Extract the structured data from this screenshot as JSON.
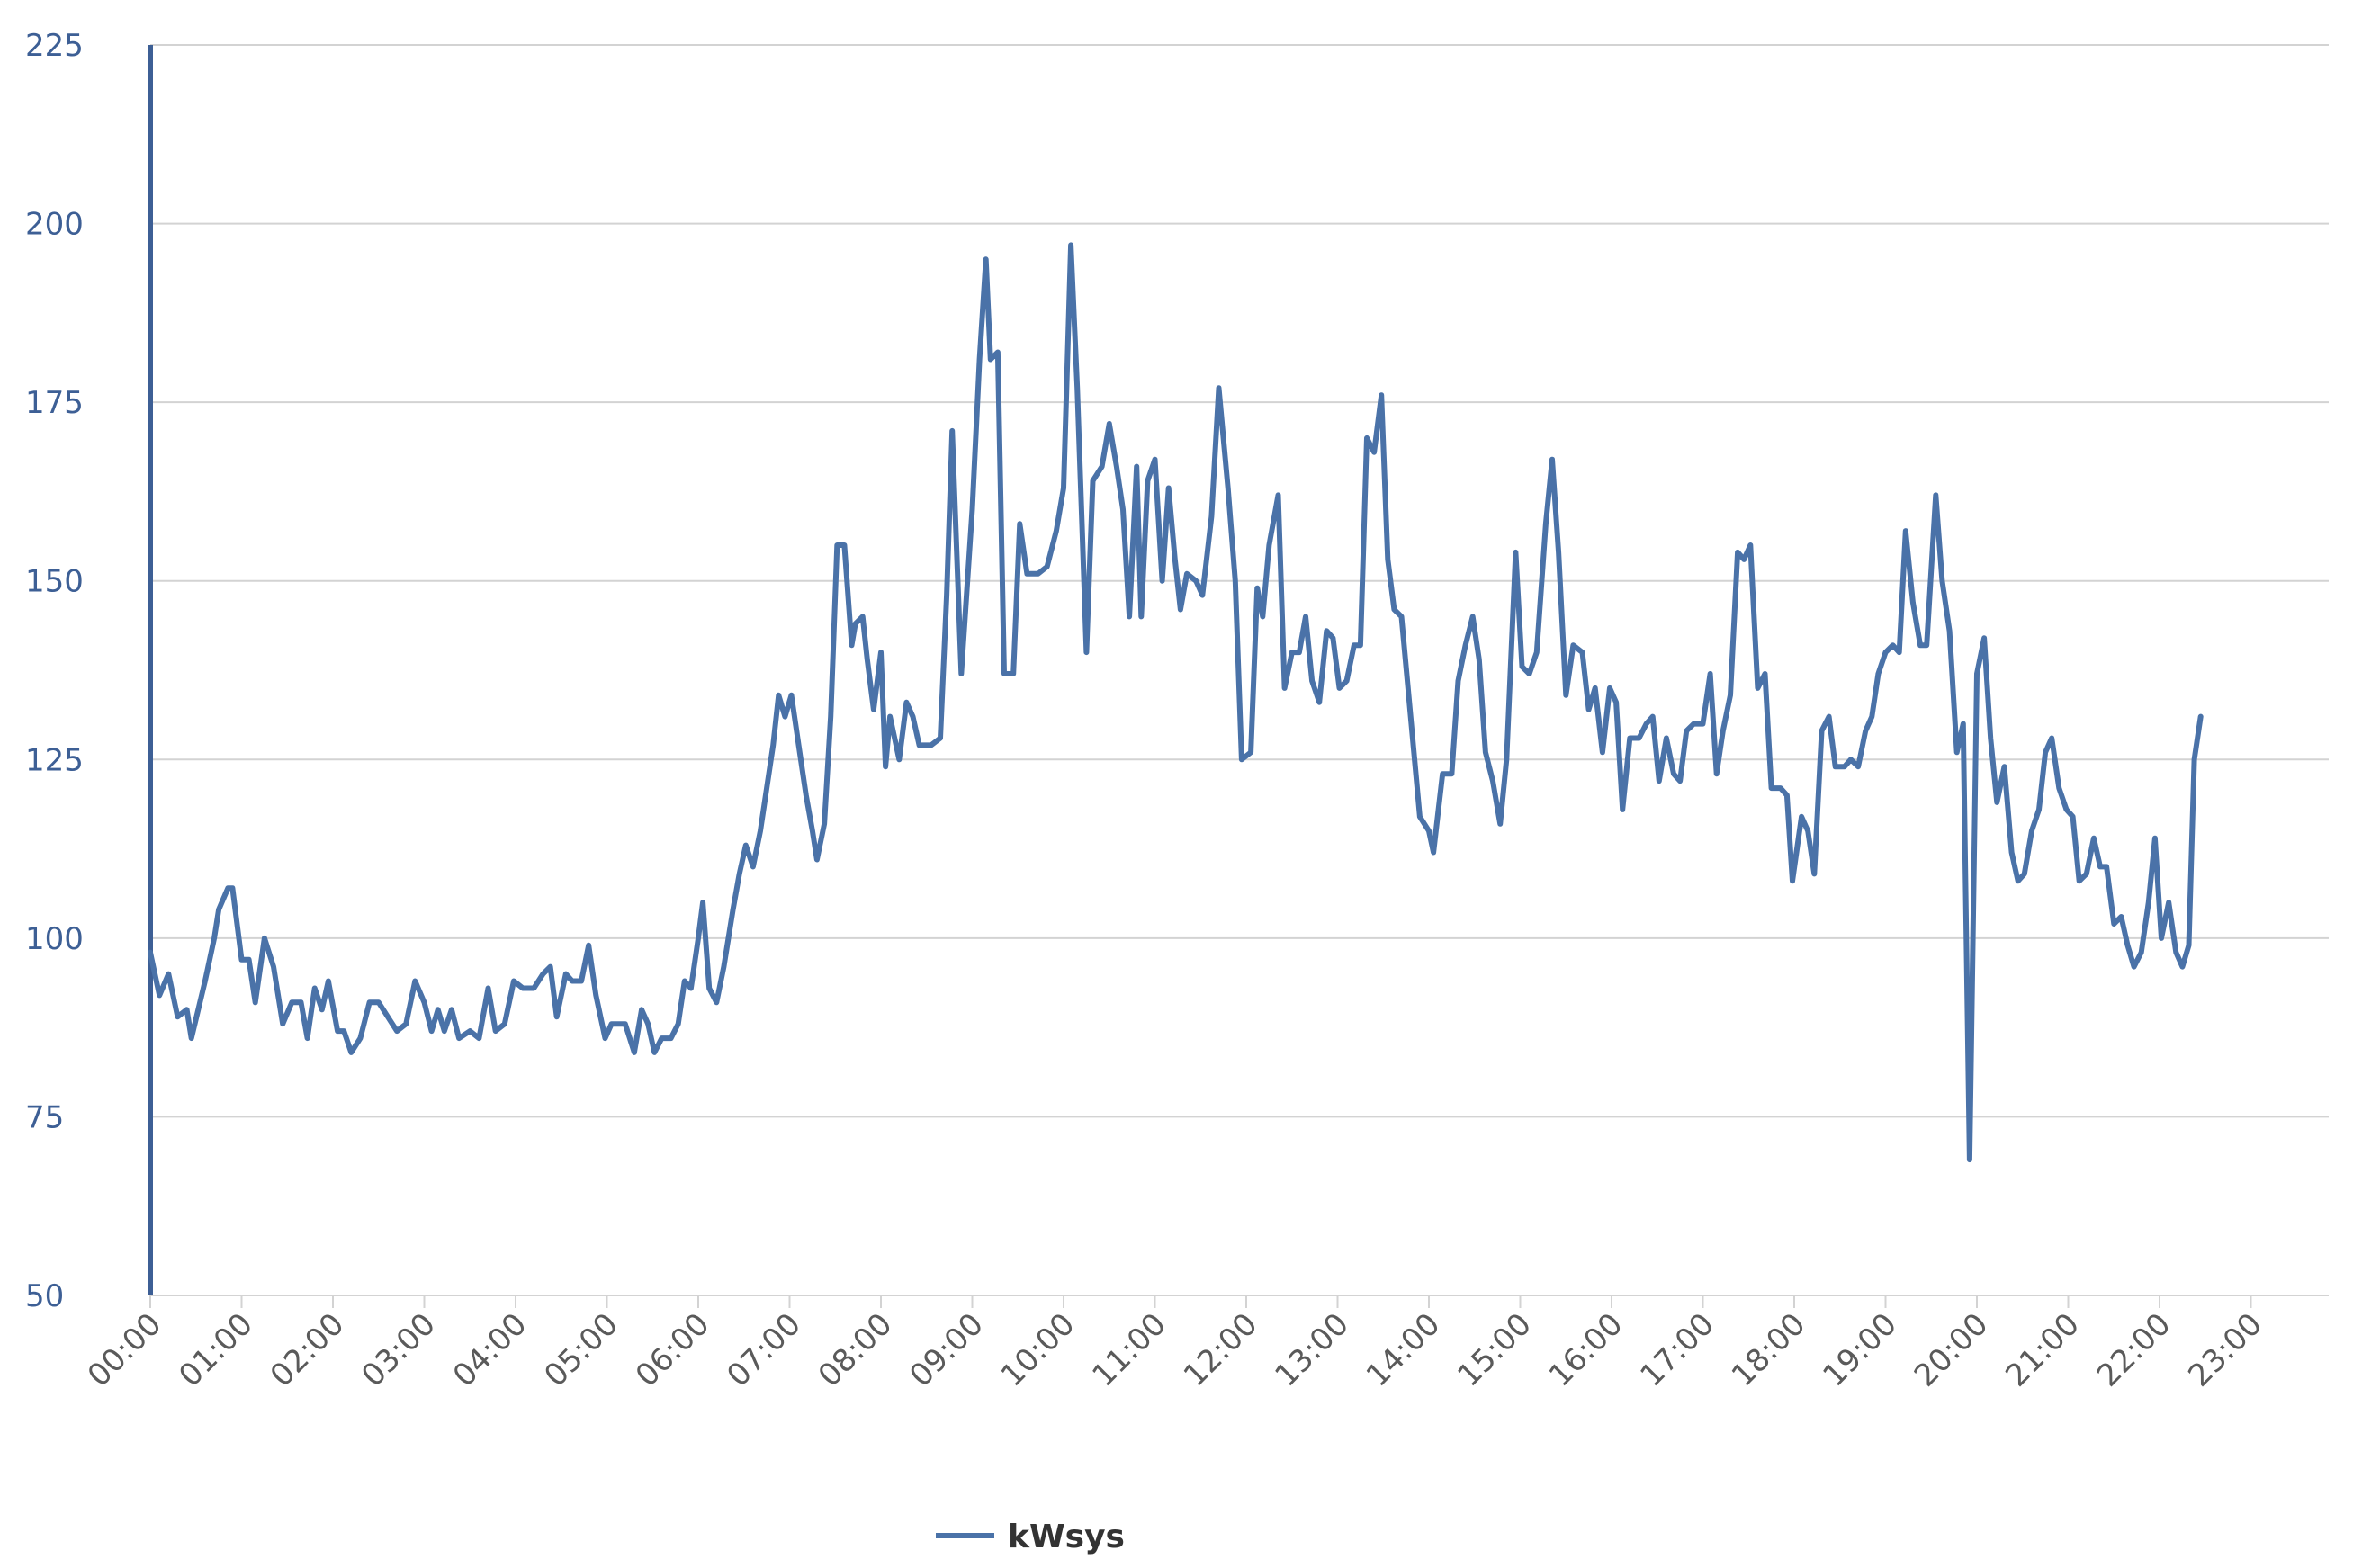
{
  "chart_data": {
    "type": "line",
    "title": "",
    "xlabel": "",
    "ylabel": "",
    "ylim": [
      50,
      225
    ],
    "y_ticks": [
      "50",
      "75",
      "100",
      "125",
      "150",
      "175",
      "200",
      "225"
    ],
    "x_ticks": [
      "00:00",
      "01:00",
      "02:00",
      "03:00",
      "04:00",
      "05:00",
      "06:00",
      "07:00",
      "08:00",
      "09:00",
      "10:00",
      "11:00",
      "12:00",
      "13:00",
      "14:00",
      "15:00",
      "16:00",
      "17:00",
      "18:00",
      "19:00",
      "20:00",
      "21:00",
      "22:00",
      "23:00"
    ],
    "grid": "horizontal",
    "legend": "bottom-center",
    "colors": {
      "series": "#4a72a8",
      "grid": "#d3d3d3",
      "axis": "#3d5f95"
    },
    "series": [
      {
        "name": "kWsys",
        "points": [
          [
            0.0,
            98
          ],
          [
            0.1,
            92
          ],
          [
            0.2,
            95
          ],
          [
            0.3,
            89
          ],
          [
            0.4,
            90
          ],
          [
            0.45,
            86
          ],
          [
            0.6,
            94
          ],
          [
            0.7,
            100
          ],
          [
            0.75,
            104
          ],
          [
            0.85,
            107
          ],
          [
            0.9,
            107
          ],
          [
            1.0,
            97
          ],
          [
            1.08,
            97
          ],
          [
            1.15,
            91
          ],
          [
            1.25,
            100
          ],
          [
            1.35,
            96
          ],
          [
            1.45,
            88
          ],
          [
            1.55,
            91
          ],
          [
            1.65,
            91
          ],
          [
            1.72,
            86
          ],
          [
            1.8,
            93
          ],
          [
            1.88,
            90
          ],
          [
            1.95,
            94
          ],
          [
            2.05,
            87
          ],
          [
            2.12,
            87
          ],
          [
            2.2,
            84
          ],
          [
            2.3,
            86
          ],
          [
            2.4,
            91
          ],
          [
            2.5,
            91
          ],
          [
            2.6,
            89
          ],
          [
            2.7,
            87
          ],
          [
            2.8,
            88
          ],
          [
            2.9,
            94
          ],
          [
            3.0,
            91
          ],
          [
            3.08,
            87
          ],
          [
            3.15,
            90
          ],
          [
            3.22,
            87
          ],
          [
            3.3,
            90
          ],
          [
            3.38,
            86
          ],
          [
            3.5,
            87
          ],
          [
            3.6,
            86
          ],
          [
            3.7,
            93
          ],
          [
            3.78,
            87
          ],
          [
            3.88,
            88
          ],
          [
            3.98,
            94
          ],
          [
            4.08,
            93
          ],
          [
            4.2,
            93
          ],
          [
            4.3,
            95
          ],
          [
            4.38,
            96
          ],
          [
            4.45,
            89
          ],
          [
            4.55,
            95
          ],
          [
            4.62,
            94
          ],
          [
            4.72,
            94
          ],
          [
            4.8,
            99
          ],
          [
            4.88,
            92
          ],
          [
            4.98,
            86
          ],
          [
            5.05,
            88
          ],
          [
            5.15,
            88
          ],
          [
            5.2,
            88
          ],
          [
            5.3,
            84
          ],
          [
            5.38,
            90
          ],
          [
            5.45,
            88
          ],
          [
            5.52,
            84
          ],
          [
            5.6,
            86
          ],
          [
            5.7,
            86
          ],
          [
            5.78,
            88
          ],
          [
            5.85,
            94
          ],
          [
            5.92,
            93
          ],
          [
            6.0,
            100
          ],
          [
            6.05,
            105
          ],
          [
            6.12,
            93
          ],
          [
            6.2,
            91
          ],
          [
            6.28,
            96
          ],
          [
            6.38,
            104
          ],
          [
            6.45,
            109
          ],
          [
            6.52,
            113
          ],
          [
            6.6,
            110
          ],
          [
            6.68,
            115
          ],
          [
            6.75,
            121
          ],
          [
            6.82,
            127
          ],
          [
            6.88,
            134
          ],
          [
            6.95,
            131
          ],
          [
            7.02,
            134
          ],
          [
            7.1,
            127
          ],
          [
            7.18,
            120
          ],
          [
            7.25,
            115
          ],
          [
            7.3,
            111
          ],
          [
            7.38,
            116
          ],
          [
            7.45,
            131
          ],
          [
            7.52,
            155
          ],
          [
            7.6,
            155
          ],
          [
            7.68,
            141
          ],
          [
            7.72,
            144
          ],
          [
            7.8,
            145
          ],
          [
            7.85,
            139
          ],
          [
            7.92,
            132
          ],
          [
            8.0,
            140
          ],
          [
            8.05,
            124
          ],
          [
            8.1,
            131
          ],
          [
            8.15,
            128
          ],
          [
            8.2,
            125
          ],
          [
            8.28,
            133
          ],
          [
            8.35,
            131
          ],
          [
            8.42,
            127
          ],
          [
            8.55,
            127
          ],
          [
            8.65,
            128
          ],
          [
            8.72,
            148
          ],
          [
            8.78,
            171
          ],
          [
            8.88,
            137
          ],
          [
            9.0,
            160
          ],
          [
            9.08,
            181
          ],
          [
            9.15,
            195
          ],
          [
            9.2,
            181
          ],
          [
            9.28,
            182
          ],
          [
            9.35,
            137
          ],
          [
            9.45,
            137
          ],
          [
            9.52,
            158
          ],
          [
            9.6,
            151
          ],
          [
            9.72,
            151
          ],
          [
            9.82,
            152
          ],
          [
            9.92,
            157
          ],
          [
            10.0,
            163
          ],
          [
            10.08,
            197
          ],
          [
            10.15,
            177
          ],
          [
            10.25,
            140
          ],
          [
            10.32,
            164
          ],
          [
            10.42,
            166
          ],
          [
            10.5,
            172
          ],
          [
            10.58,
            166
          ],
          [
            10.65,
            160
          ],
          [
            10.72,
            145
          ],
          [
            10.8,
            166
          ],
          [
            10.85,
            145
          ],
          [
            10.92,
            164
          ],
          [
            11.0,
            167
          ],
          [
            11.08,
            150
          ],
          [
            11.15,
            163
          ],
          [
            11.22,
            153
          ],
          [
            11.28,
            146
          ],
          [
            11.35,
            151
          ],
          [
            11.45,
            150
          ],
          [
            11.52,
            148
          ],
          [
            11.62,
            159
          ],
          [
            11.7,
            177
          ],
          [
            11.8,
            163
          ],
          [
            11.88,
            150
          ],
          [
            11.95,
            125
          ],
          [
            12.05,
            126
          ],
          [
            12.12,
            149
          ],
          [
            12.18,
            145
          ],
          [
            12.25,
            155
          ],
          [
            12.35,
            162
          ],
          [
            12.42,
            135
          ],
          [
            12.5,
            140
          ],
          [
            12.58,
            140
          ],
          [
            12.65,
            145
          ],
          [
            12.72,
            136
          ],
          [
            12.8,
            133
          ],
          [
            12.88,
            143
          ],
          [
            12.95,
            142
          ],
          [
            13.02,
            135
          ],
          [
            13.1,
            136
          ],
          [
            13.18,
            141
          ],
          [
            13.25,
            141
          ],
          [
            13.32,
            170
          ],
          [
            13.4,
            168
          ],
          [
            13.48,
            176
          ],
          [
            13.55,
            153
          ],
          [
            13.62,
            146
          ],
          [
            13.7,
            145
          ],
          [
            13.8,
            131
          ],
          [
            13.9,
            117
          ],
          [
            14.0,
            115
          ],
          [
            14.05,
            112
          ],
          [
            14.15,
            123
          ],
          [
            14.25,
            123
          ],
          [
            14.32,
            136
          ],
          [
            14.4,
            141
          ],
          [
            14.48,
            145
          ],
          [
            14.55,
            139
          ],
          [
            14.62,
            126
          ],
          [
            14.7,
            122
          ],
          [
            14.78,
            116
          ],
          [
            14.85,
            125
          ],
          [
            14.95,
            154
          ],
          [
            15.02,
            138
          ],
          [
            15.1,
            137
          ],
          [
            15.18,
            140
          ],
          [
            15.28,
            158
          ],
          [
            15.35,
            167
          ],
          [
            15.42,
            154
          ],
          [
            15.5,
            134
          ],
          [
            15.58,
            141
          ],
          [
            15.68,
            140
          ],
          [
            15.75,
            132
          ],
          [
            15.82,
            135
          ],
          [
            15.9,
            126
          ],
          [
            15.98,
            135
          ],
          [
            16.05,
            133
          ],
          [
            16.12,
            118
          ],
          [
            16.2,
            128
          ],
          [
            16.3,
            128
          ],
          [
            16.38,
            130
          ],
          [
            16.45,
            131
          ],
          [
            16.52,
            122
          ],
          [
            16.6,
            128
          ],
          [
            16.68,
            123
          ],
          [
            16.75,
            122
          ],
          [
            16.82,
            129
          ],
          [
            16.9,
            130
          ],
          [
            17.0,
            130
          ],
          [
            17.08,
            137
          ],
          [
            17.15,
            123
          ],
          [
            17.22,
            129
          ],
          [
            17.3,
            134
          ],
          [
            17.38,
            154
          ],
          [
            17.45,
            153
          ],
          [
            17.52,
            155
          ],
          [
            17.6,
            135
          ],
          [
            17.68,
            137
          ],
          [
            17.75,
            121
          ],
          [
            17.85,
            121
          ],
          [
            17.92,
            120
          ],
          [
            17.98,
            108
          ],
          [
            18.08,
            117
          ],
          [
            18.15,
            115
          ],
          [
            18.22,
            109
          ],
          [
            18.3,
            129
          ],
          [
            18.38,
            131
          ],
          [
            18.45,
            124
          ],
          [
            18.55,
            124
          ],
          [
            18.62,
            125
          ],
          [
            18.7,
            124
          ],
          [
            18.78,
            129
          ],
          [
            18.85,
            131
          ],
          [
            18.92,
            137
          ],
          [
            19.0,
            140
          ],
          [
            19.08,
            141
          ],
          [
            19.15,
            140
          ],
          [
            19.22,
            157
          ],
          [
            19.3,
            147
          ],
          [
            19.38,
            141
          ],
          [
            19.45,
            141
          ],
          [
            19.55,
            162
          ],
          [
            19.62,
            150
          ],
          [
            19.7,
            143
          ],
          [
            19.78,
            126
          ],
          [
            19.85,
            130
          ],
          [
            19.92,
            69
          ],
          [
            20.0,
            137
          ],
          [
            20.08,
            142
          ],
          [
            20.15,
            128
          ],
          [
            20.22,
            119
          ],
          [
            20.3,
            124
          ],
          [
            20.38,
            112
          ],
          [
            20.45,
            108
          ],
          [
            20.52,
            109
          ],
          [
            20.6,
            115
          ],
          [
            20.68,
            118
          ],
          [
            20.75,
            126
          ],
          [
            20.82,
            128
          ],
          [
            20.9,
            121
          ],
          [
            20.98,
            118
          ],
          [
            21.05,
            117
          ],
          [
            21.12,
            108
          ],
          [
            21.2,
            109
          ],
          [
            21.28,
            114
          ],
          [
            21.35,
            110
          ],
          [
            21.42,
            110
          ],
          [
            21.5,
            102
          ],
          [
            21.58,
            103
          ],
          [
            21.65,
            99
          ],
          [
            21.72,
            96
          ],
          [
            21.8,
            98
          ],
          [
            21.88,
            105
          ],
          [
            21.95,
            114
          ],
          [
            22.02,
            100
          ],
          [
            22.1,
            105
          ],
          [
            22.18,
            98
          ],
          [
            22.25,
            96
          ],
          [
            22.32,
            99
          ],
          [
            22.38,
            125
          ],
          [
            22.45,
            131
          ]
        ]
      }
    ]
  }
}
